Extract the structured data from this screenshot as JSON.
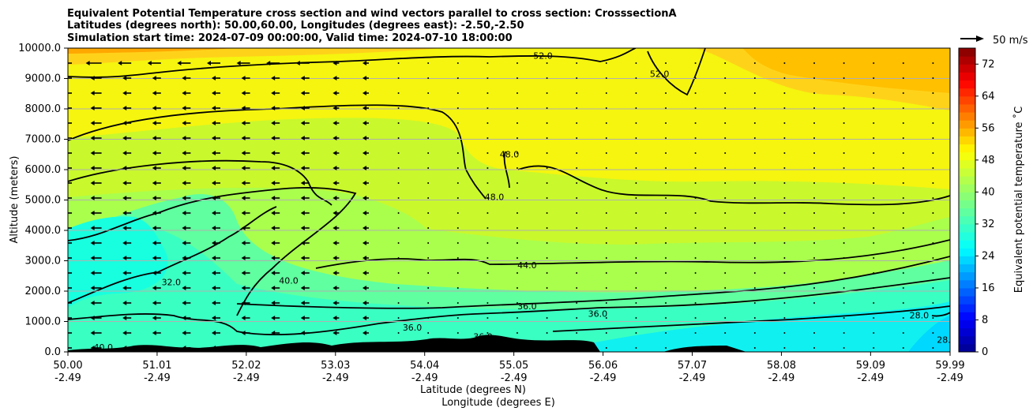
{
  "title": {
    "line1": "Equivalent Potential Temperature cross section and wind vectors parallel to cross section: CrosssectionA",
    "line2": "Latitudes (degrees north): 50.00,60.00, Longitudes (degrees east): -2.50,-2.50",
    "line3": "Simulation start time: 2024-07-09 00:00:00, Valid time: 2024-07-10 18:00:00"
  },
  "quiver_key": {
    "label": "50 m/s"
  },
  "chart_data": {
    "type": "contourf",
    "title": "Equivalent Potential Temperature cross section and wind vectors parallel to cross section: CrosssectionA",
    "ylabel": "Altitude (meters)",
    "xlabel_lat": "Latitude (degrees N)",
    "xlabel_lon": "Longitude (degrees E)",
    "xlim": [
      50.0,
      59.99
    ],
    "ylim": [
      0,
      10000
    ],
    "y_ticks": [
      "0.0",
      "1000.0",
      "2000.0",
      "3000.0",
      "4000.0",
      "5000.0",
      "6000.0",
      "7000.0",
      "8000.0",
      "9000.0",
      "10000.0"
    ],
    "y_tick_values": [
      0,
      1000,
      2000,
      3000,
      4000,
      5000,
      6000,
      7000,
      8000,
      9000,
      10000
    ],
    "x_ticks": [
      {
        "lat": "50.00",
        "lon": "-2.49",
        "v": 50.0
      },
      {
        "lat": "51.01",
        "lon": "-2.49",
        "v": 51.01
      },
      {
        "lat": "52.02",
        "lon": "-2.49",
        "v": 52.02
      },
      {
        "lat": "53.03",
        "lon": "-2.49",
        "v": 53.03
      },
      {
        "lat": "54.04",
        "lon": "-2.49",
        "v": 54.04
      },
      {
        "lat": "55.05",
        "lon": "-2.49",
        "v": 55.05
      },
      {
        "lat": "56.06",
        "lon": "-2.49",
        "v": 56.06
      },
      {
        "lat": "57.07",
        "lon": "-2.49",
        "v": 57.07
      },
      {
        "lat": "58.08",
        "lon": "-2.49",
        "v": 58.08
      },
      {
        "lat": "59.09",
        "lon": "-2.49",
        "v": 59.09
      },
      {
        "lat": "59.99",
        "lon": "-2.49",
        "v": 59.99
      }
    ],
    "colorbar": {
      "label": "Equivalent potential temperature ˚C",
      "range": [
        0,
        76
      ],
      "ticks": [
        "0",
        "8",
        "16",
        "24",
        "32",
        "40",
        "48",
        "56",
        "64",
        "72"
      ],
      "tick_values": [
        0,
        8,
        16,
        24,
        32,
        40,
        48,
        56,
        64,
        72
      ],
      "colormap": "jet"
    },
    "contour_labels": [
      {
        "text": "52.0",
        "lat": 55.38,
        "alt": 9650
      },
      {
        "text": "52.0",
        "lat": 56.7,
        "alt": 9050
      },
      {
        "text": "48.0",
        "lat": 55.0,
        "alt": 6400
      },
      {
        "text": "48.0",
        "lat": 54.83,
        "alt": 5000
      },
      {
        "text": "44.0",
        "lat": 55.2,
        "alt": 2750
      },
      {
        "text": "40.0",
        "lat": 52.5,
        "alt": 2250
      },
      {
        "text": "32.0",
        "lat": 51.17,
        "alt": 2200
      },
      {
        "text": "36.0",
        "lat": 55.2,
        "alt": 1400
      },
      {
        "text": "36.0",
        "lat": 56.0,
        "alt": 1150
      },
      {
        "text": "28.0",
        "lat": 59.64,
        "alt": 1100
      },
      {
        "text": "28.0",
        "lat": 59.95,
        "alt": 300
      },
      {
        "text": "40.0",
        "lat": 50.4,
        "alt": 50
      },
      {
        "text": "36.0",
        "lat": 53.9,
        "alt": 700
      },
      {
        "text": "36.0",
        "lat": 54.7,
        "alt": 400
      }
    ],
    "wind_note": "Easterly winds (pointing left) dominate lat 50–53.5 at most levels; weak winds elsewhere"
  }
}
